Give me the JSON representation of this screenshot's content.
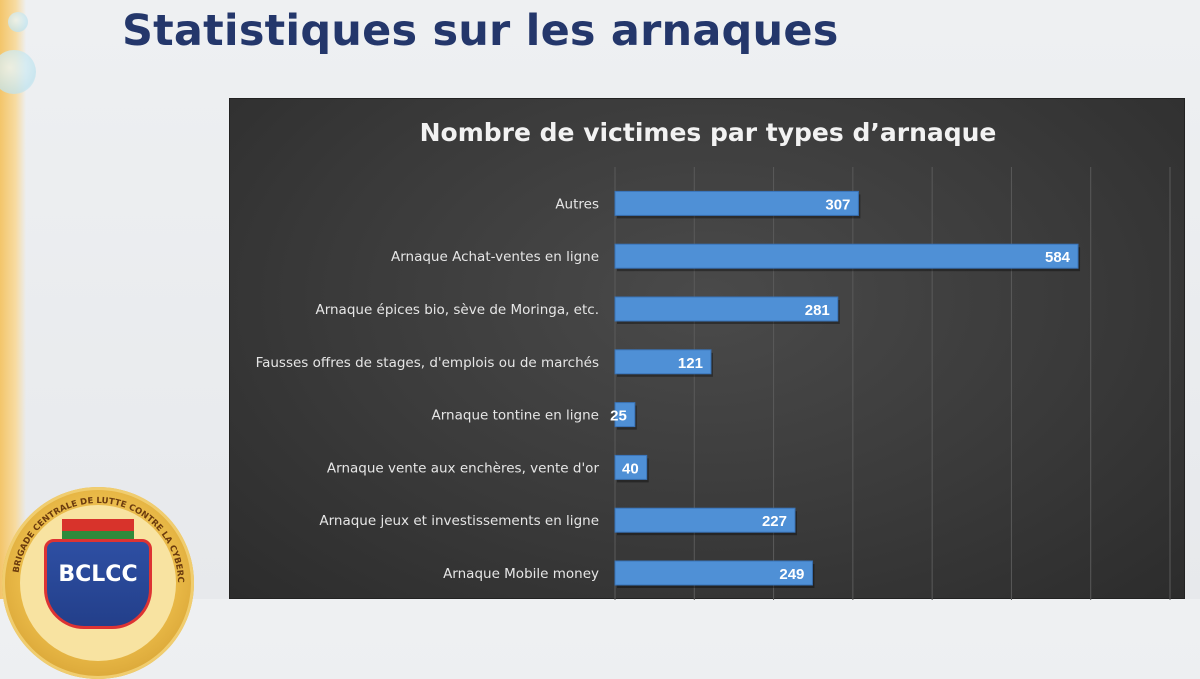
{
  "page": {
    "title": "Statistiques sur les arnaques"
  },
  "logo": {
    "text": "BCLCC",
    "ring_text": "BRIGADE CENTRALE DE LUTTE CONTRE LA CYBERCRIMINALITÉ"
  },
  "chart_data": {
    "type": "bar",
    "orientation": "horizontal",
    "title": "Nombre de victimes par types d’arnaque",
    "categories": [
      "Autres",
      "Arnaque Achat-ventes en ligne",
      "Arnaque épices bio, sève de Moringa, etc.",
      "Fausses offres de stages, d'emplois ou de marchés",
      "Arnaque tontine en ligne",
      "Arnaque vente aux enchères, vente d'or",
      "Arnaque jeux et investissements en ligne",
      "Arnaque Mobile money"
    ],
    "values": [
      307,
      584,
      281,
      121,
      25,
      40,
      227,
      249
    ],
    "xlim": [
      0,
      700
    ],
    "grid": true,
    "legend": "none",
    "colors": {
      "bar": "#4f90d6",
      "bar_edge": "#3a74b8",
      "label": "#e6e6e6",
      "value": "#ffffff",
      "grid": "#5a5a5a",
      "title": "#f2f2f2"
    }
  }
}
